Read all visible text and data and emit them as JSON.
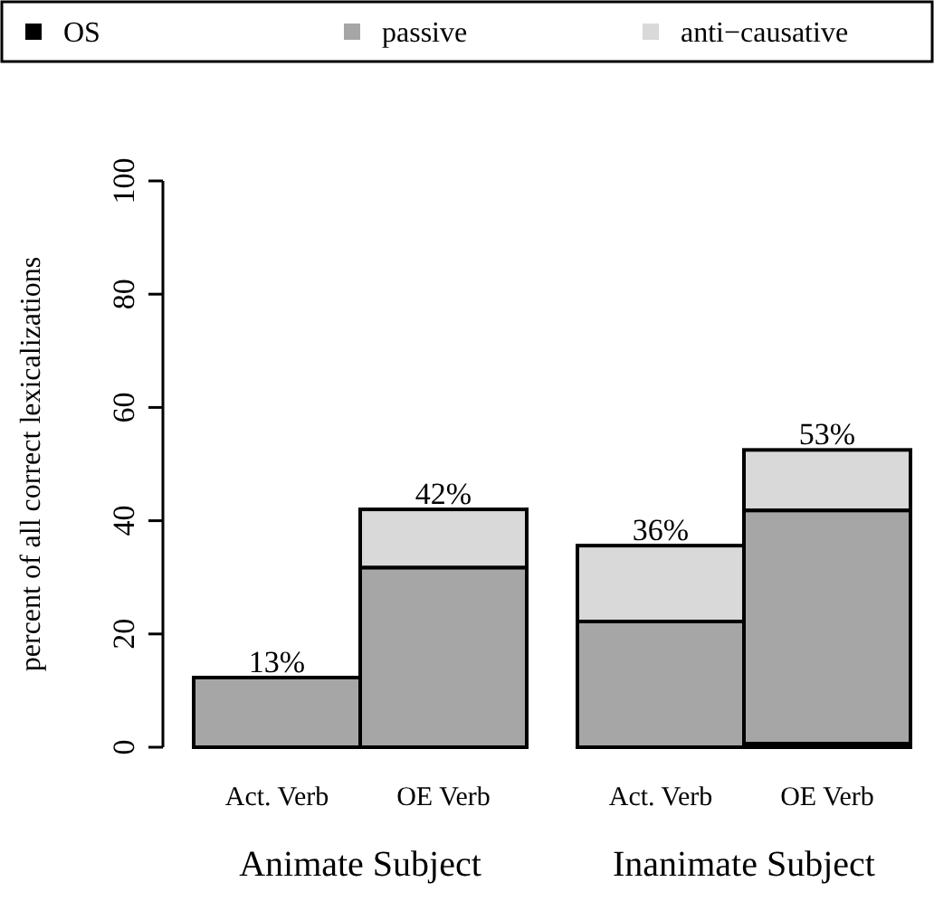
{
  "chart_data": {
    "type": "bar",
    "stacked": true,
    "ylabel": "percent of all correct lexicalizations",
    "categories": [
      "Act. Verb",
      "OE Verb",
      "Act. Verb",
      "OE Verb"
    ],
    "series": [
      {
        "name": "OS",
        "color": "#000000",
        "values": [
          0,
          0,
          0,
          0.6
        ]
      },
      {
        "name": "passive",
        "color": "#a6a6a6",
        "values": [
          12.3,
          31.7,
          22.2,
          41.2
        ]
      },
      {
        "name": "anti−causative",
        "color": "#d9d9d9",
        "values": [
          0,
          10.3,
          13.4,
          10.7
        ]
      }
    ],
    "totals": [
      "13%",
      "42%",
      "36%",
      "53%"
    ],
    "annotations": [
      "Animate Subject",
      "Inanimate Subject"
    ],
    "ylim": [
      0,
      100
    ],
    "yticks": [
      0,
      20,
      40,
      60,
      80,
      100
    ],
    "legend": "top"
  }
}
